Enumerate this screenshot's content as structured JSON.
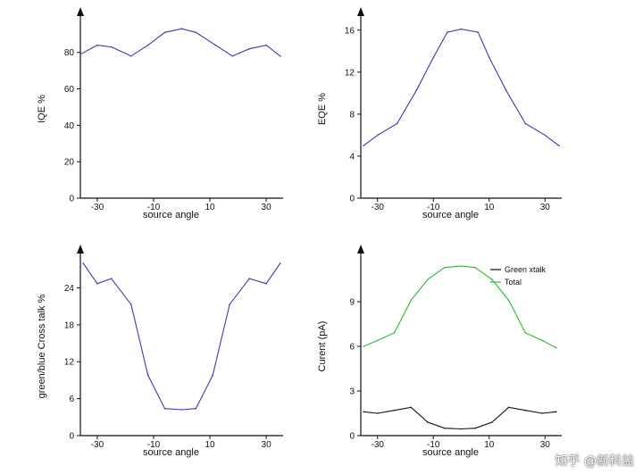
{
  "chart_data": [
    {
      "type": "line",
      "xlabel": "source angle",
      "ylabel": "IQE %",
      "xlim": [
        -36,
        36
      ],
      "ylim": [
        0,
        98
      ],
      "xticks": [
        -30,
        -10,
        10,
        30
      ],
      "yticks": [
        0,
        20,
        40,
        60,
        80
      ],
      "ytick_labels": [
        "0",
        "20",
        "40",
        "60",
        "80"
      ],
      "series": [
        {
          "color": "#3b3bb0",
          "x": [
            -36,
            -30,
            -25,
            -18,
            -12,
            -6,
            0,
            5,
            12,
            18,
            24,
            30,
            35
          ],
          "y": [
            79,
            84,
            83,
            78,
            84,
            91,
            93,
            91,
            84,
            78,
            82,
            84,
            78
          ]
        }
      ]
    },
    {
      "type": "line",
      "xlabel": "source angle",
      "ylabel": "EQE %",
      "xlim": [
        -36,
        36
      ],
      "ylim": [
        0,
        17
      ],
      "xticks": [
        -30,
        -10,
        10,
        30
      ],
      "yticks": [
        0,
        4,
        8,
        12,
        16
      ],
      "ytick_labels": [
        "0",
        "4",
        "8",
        "12",
        "16"
      ],
      "series": [
        {
          "color": "#3b3bb0",
          "x": [
            -35,
            -30,
            -23,
            -16,
            -10,
            -5,
            0,
            6,
            10,
            16,
            23,
            30,
            35
          ],
          "y": [
            5.0,
            6.0,
            7.1,
            10.3,
            13.4,
            15.8,
            16.1,
            15.8,
            13.4,
            10.3,
            7.1,
            6.0,
            5.0
          ]
        }
      ]
    },
    {
      "type": "line",
      "xlabel": "source angle",
      "ylabel": "green/blue Cross talk %",
      "xlim": [
        -36,
        36
      ],
      "ylim": [
        0,
        29
      ],
      "xticks": [
        -30,
        -10,
        10,
        30
      ],
      "yticks": [
        0,
        6,
        12,
        18,
        24
      ],
      "ytick_labels": [
        "0",
        "6",
        "12",
        "18",
        "24"
      ],
      "series": [
        {
          "color": "#3b3bb0",
          "x": [
            -35,
            -30,
            -25,
            -18,
            -12,
            -6,
            0,
            5,
            11,
            17,
            24,
            30,
            35
          ],
          "y": [
            28.0,
            24.7,
            25.5,
            21.3,
            9.8,
            4.4,
            4.2,
            4.4,
            9.8,
            21.3,
            25.5,
            24.7,
            28.0
          ]
        }
      ]
    },
    {
      "type": "line",
      "xlabel": "source angle",
      "ylabel": "Curent (pA)",
      "xlim": [
        -36,
        36
      ],
      "ylim": [
        0,
        12
      ],
      "xticks": [
        -30,
        -10,
        10,
        30
      ],
      "xtick_labels": [
        "-30",
        "-10",
        "10",
        "30"
      ],
      "yticks": [
        0,
        3,
        6,
        9
      ],
      "ytick_labels": [
        "0",
        "3",
        "6",
        "9"
      ],
      "legend_position": "top-right",
      "series": [
        {
          "name": "Green xtalk",
          "color": "#111111",
          "x": [
            -35,
            -30,
            -24,
            -18,
            -12,
            -6,
            0,
            5,
            11,
            17,
            23,
            29,
            34
          ],
          "y": [
            1.6,
            1.5,
            1.7,
            1.9,
            0.9,
            0.5,
            0.45,
            0.5,
            0.9,
            1.9,
            1.7,
            1.5,
            1.6
          ]
        },
        {
          "name": "Total",
          "color": "#2db82d",
          "x": [
            -35,
            -30,
            -24,
            -18,
            -12,
            -6,
            0,
            5,
            11,
            17,
            23,
            29,
            34
          ],
          "y": [
            6.0,
            6.4,
            6.9,
            9.1,
            10.5,
            11.3,
            11.4,
            11.3,
            10.5,
            9.1,
            6.9,
            6.4,
            5.9
          ]
        }
      ]
    }
  ],
  "watermark": "知乎 @新科益"
}
